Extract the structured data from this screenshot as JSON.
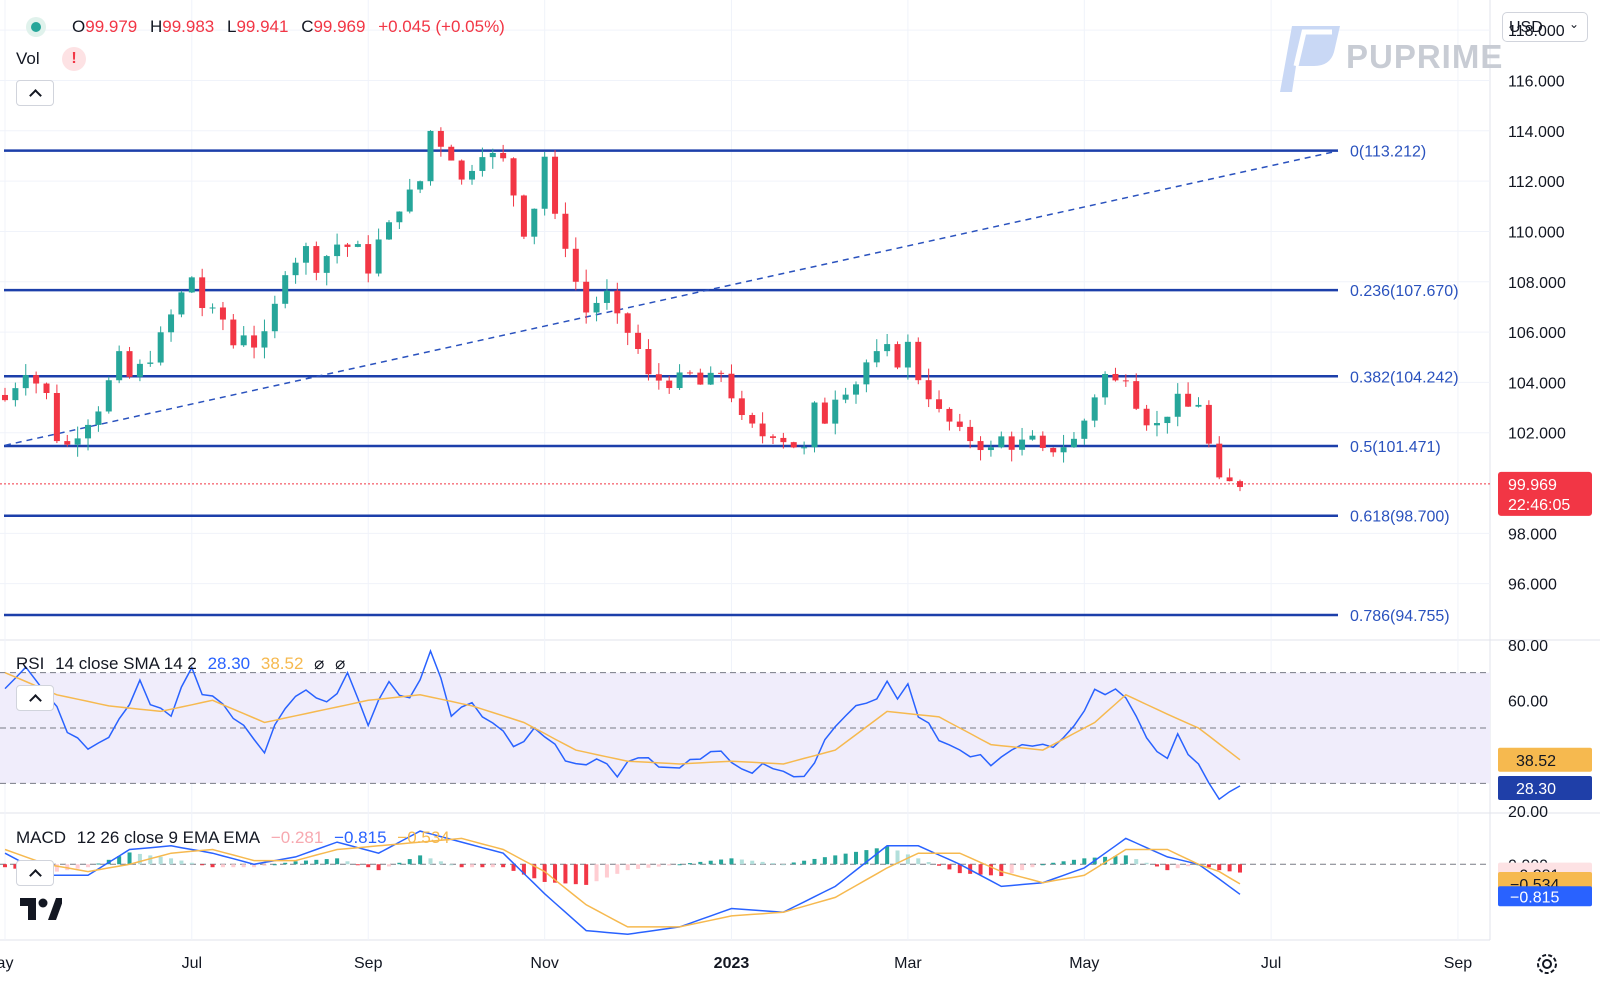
{
  "header": {
    "o_label": "O",
    "o_value": "99.979",
    "h_label": "H",
    "h_value": "99.983",
    "l_label": "L",
    "l_value": "99.941",
    "c_label": "C",
    "c_value": "99.969",
    "change": "+0.045 (+0.05%)",
    "vol_label": "Vol",
    "warning_icon": "!"
  },
  "currency": {
    "label": "USD",
    "chevron": "⌄"
  },
  "brand": {
    "name": "PUPRIME"
  },
  "chart_data": [
    {
      "type": "candlestick",
      "title": "",
      "x_ticks": [
        "ay",
        "Jul",
        "Sep",
        "Nov",
        "2023",
        "Mar",
        "May",
        "Jul",
        "Sep"
      ],
      "y_ticks": [
        "118.000",
        "116.000",
        "114.000",
        "112.000",
        "110.000",
        "108.000",
        "106.000",
        "104.000",
        "102.000",
        "98.000",
        "96.000"
      ],
      "ylim": [
        94.0,
        119.0
      ],
      "last_price": "99.969",
      "countdown": "22:46:05",
      "fib_levels": [
        {
          "label": "0(113.212)",
          "value": 113.212
        },
        {
          "label": "0.236(107.670)",
          "value": 107.67
        },
        {
          "label": "0.382(104.242)",
          "value": 104.242
        },
        {
          "label": "0.5(101.471)",
          "value": 101.471
        },
        {
          "label": "0.618(98.700)",
          "value": 98.7
        },
        {
          "label": "0.786(94.755)",
          "value": 94.755
        }
      ],
      "trendline": {
        "from": [
          0,
          101.5
        ],
        "to": [
          79,
          113.2
        ]
      },
      "anchors": [
        [
          0,
          103.3
        ],
        [
          2,
          104.5
        ],
        [
          4,
          103.5
        ],
        [
          5,
          101.8
        ],
        [
          6,
          101.5
        ],
        [
          8,
          102.5
        ],
        [
          9,
          103.0
        ],
        [
          11,
          105.0
        ],
        [
          12,
          104.2
        ],
        [
          14,
          105.0
        ],
        [
          15,
          105.8
        ],
        [
          17,
          107.5
        ],
        [
          18,
          108.2
        ],
        [
          19,
          107.0
        ],
        [
          21,
          106.5
        ],
        [
          22,
          105.5
        ],
        [
          23,
          106.0
        ],
        [
          24,
          105.5
        ],
        [
          25,
          105.8
        ],
        [
          26,
          107.0
        ],
        [
          27,
          108.5
        ],
        [
          29,
          109.3
        ],
        [
          30,
          108.6
        ],
        [
          32,
          109.5
        ],
        [
          34,
          109.3
        ],
        [
          35,
          108.5
        ],
        [
          36,
          109.6
        ],
        [
          37,
          110.2
        ],
        [
          38,
          111.0
        ],
        [
          39,
          111.5
        ],
        [
          40,
          112.0
        ],
        [
          41,
          114.0
        ],
        [
          43,
          113.0
        ],
        [
          44,
          112.0
        ],
        [
          46,
          113.2
        ],
        [
          48,
          112.8
        ],
        [
          49,
          111.5
        ],
        [
          50,
          110.0
        ],
        [
          51,
          111.0
        ],
        [
          52,
          113.0
        ],
        [
          53,
          110.5
        ],
        [
          54,
          109.5
        ],
        [
          55,
          108.0
        ],
        [
          56,
          106.8
        ],
        [
          57,
          107.2
        ],
        [
          58,
          107.5
        ],
        [
          59,
          106.5
        ],
        [
          60,
          106.0
        ],
        [
          61,
          105.3
        ],
        [
          62,
          104.2
        ],
        [
          64,
          104.0
        ],
        [
          66,
          104.3
        ],
        [
          67,
          103.9
        ],
        [
          69,
          104.4
        ],
        [
          70,
          103.5
        ],
        [
          71,
          102.5
        ],
        [
          73,
          101.9
        ],
        [
          74,
          102.0
        ],
        [
          76,
          101.5
        ],
        [
          77,
          101.3
        ],
        [
          78,
          103.0
        ],
        [
          79,
          102.5
        ],
        [
          80,
          103.5
        ],
        [
          82,
          104.0
        ],
        [
          83,
          104.8
        ],
        [
          85,
          105.3
        ],
        [
          86,
          104.8
        ],
        [
          87,
          105.5
        ],
        [
          88,
          104.2
        ],
        [
          89,
          103.5
        ],
        [
          90,
          102.8
        ],
        [
          92,
          102.0
        ],
        [
          94,
          101.5
        ],
        [
          95,
          101.3
        ],
        [
          96,
          101.8
        ],
        [
          97,
          101.5
        ],
        [
          99,
          101.7
        ],
        [
          100,
          101.2
        ],
        [
          102,
          101.5
        ],
        [
          103,
          101.7
        ],
        [
          104,
          102.5
        ],
        [
          105,
          103.5
        ],
        [
          106,
          104.3
        ],
        [
          107,
          104.0
        ],
        [
          108,
          104.3
        ],
        [
          109,
          103.2
        ],
        [
          110,
          102.5
        ],
        [
          111,
          102.3
        ],
        [
          112,
          102.8
        ],
        [
          113,
          103.3
        ],
        [
          114,
          103.0
        ],
        [
          115,
          103.2
        ],
        [
          116,
          101.5
        ],
        [
          117,
          100.0
        ],
        [
          119,
          99.969
        ]
      ],
      "current_index": 119
    },
    {
      "type": "line",
      "title": "",
      "indicator": {
        "name": "RSI",
        "params": "14 close SMA 14 2",
        "rsi_value": "28.30",
        "sma_value": "38.52",
        "extra1": "⌀",
        "extra2": "⌀"
      },
      "y_ticks": [
        "80.00",
        "60.00",
        "20.00"
      ],
      "ylim": [
        20,
        80
      ],
      "band": [
        30,
        70
      ],
      "midline": 50,
      "series": [
        {
          "name": "",
          "color": "#2962ff",
          "anchors": [
            [
              0,
              66
            ],
            [
              2,
              72
            ],
            [
              4,
              62
            ],
            [
              6,
              50
            ],
            [
              8,
              44
            ],
            [
              10,
              48
            ],
            [
              12,
              60
            ],
            [
              13,
              68
            ],
            [
              14,
              60
            ],
            [
              16,
              55
            ],
            [
              18,
              72
            ],
            [
              19,
              62
            ],
            [
              21,
              58
            ],
            [
              23,
              50
            ],
            [
              25,
              42
            ],
            [
              27,
              58
            ],
            [
              29,
              64
            ],
            [
              31,
              58
            ],
            [
              33,
              70
            ],
            [
              35,
              52
            ],
            [
              37,
              66
            ],
            [
              39,
              60
            ],
            [
              41,
              78
            ],
            [
              43,
              56
            ],
            [
              45,
              60
            ],
            [
              47,
              52
            ],
            [
              49,
              44
            ],
            [
              51,
              50
            ],
            [
              53,
              44
            ],
            [
              55,
              36
            ],
            [
              57,
              38
            ],
            [
              59,
              34
            ],
            [
              61,
              38
            ],
            [
              63,
              37
            ],
            [
              65,
              36
            ],
            [
              67,
              38
            ],
            [
              69,
              42
            ],
            [
              71,
              34
            ],
            [
              73,
              36
            ],
            [
              75,
              34
            ],
            [
              77,
              32
            ],
            [
              79,
              46
            ],
            [
              81,
              56
            ],
            [
              83,
              60
            ],
            [
              85,
              65
            ],
            [
              86,
              60
            ],
            [
              87,
              67
            ],
            [
              88,
              55
            ],
            [
              89,
              50
            ],
            [
              91,
              43
            ],
            [
              93,
              40
            ],
            [
              95,
              38
            ],
            [
              97,
              44
            ],
            [
              99,
              42
            ],
            [
              101,
              45
            ],
            [
              103,
              52
            ],
            [
              105,
              62
            ],
            [
              107,
              66
            ],
            [
              108,
              62
            ],
            [
              109,
              54
            ],
            [
              110,
              46
            ],
            [
              112,
              40
            ],
            [
              113,
              48
            ],
            [
              114,
              42
            ],
            [
              116,
              32
            ],
            [
              117,
              24
            ],
            [
              119,
              28.3
            ]
          ]
        },
        {
          "name": "",
          "color": "#f6b94f",
          "anchors": [
            [
              0,
              70
            ],
            [
              5,
              62
            ],
            [
              10,
              58
            ],
            [
              15,
              56
            ],
            [
              20,
              60
            ],
            [
              25,
              52
            ],
            [
              30,
              56
            ],
            [
              35,
              60
            ],
            [
              40,
              62
            ],
            [
              45,
              58
            ],
            [
              50,
              52
            ],
            [
              55,
              42
            ],
            [
              60,
              38
            ],
            [
              65,
              37
            ],
            [
              70,
              38
            ],
            [
              75,
              37
            ],
            [
              80,
              42
            ],
            [
              85,
              56
            ],
            [
              90,
              54
            ],
            [
              95,
              44
            ],
            [
              100,
              42
            ],
            [
              105,
              52
            ],
            [
              108,
              62
            ],
            [
              112,
              55
            ],
            [
              115,
              50
            ],
            [
              119,
              38.52
            ]
          ]
        }
      ]
    },
    {
      "type": "line",
      "title": "",
      "indicator": {
        "name": "MACD",
        "params": "12 26 close 9 EMA EMA",
        "hist_value": "−0.281",
        "macd_value": "−0.815",
        "signal_value": "−0.534"
      },
      "y_ticks": [
        "0.000"
      ],
      "ylim": [
        -2.0,
        1.2
      ],
      "zero": 0,
      "series": [
        {
          "name": "",
          "color": "#2962ff",
          "anchors": [
            [
              0,
              0.3
            ],
            [
              4,
              -0.3
            ],
            [
              8,
              -0.3
            ],
            [
              12,
              0.4
            ],
            [
              16,
              0.5
            ],
            [
              20,
              0.3
            ],
            [
              24,
              0.0
            ],
            [
              28,
              0.2
            ],
            [
              32,
              0.6
            ],
            [
              36,
              0.3
            ],
            [
              40,
              0.9
            ],
            [
              44,
              0.6
            ],
            [
              48,
              0.3
            ],
            [
              52,
              -0.8
            ],
            [
              56,
              -1.8
            ],
            [
              60,
              -1.9
            ],
            [
              65,
              -1.7
            ],
            [
              70,
              -1.2
            ],
            [
              75,
              -1.3
            ],
            [
              80,
              -0.6
            ],
            [
              85,
              0.5
            ],
            [
              88,
              0.5
            ],
            [
              92,
              0.0
            ],
            [
              96,
              -0.6
            ],
            [
              100,
              -0.5
            ],
            [
              104,
              -0.1
            ],
            [
              108,
              0.7
            ],
            [
              112,
              0.2
            ],
            [
              115,
              0.0
            ],
            [
              117,
              -0.4
            ],
            [
              119,
              -0.815
            ]
          ]
        },
        {
          "name": "",
          "color": "#f6b94f",
          "anchors": [
            [
              0,
              0.4
            ],
            [
              4,
              0.0
            ],
            [
              8,
              -0.2
            ],
            [
              12,
              0.0
            ],
            [
              16,
              0.3
            ],
            [
              20,
              0.4
            ],
            [
              24,
              0.1
            ],
            [
              28,
              0.1
            ],
            [
              32,
              0.4
            ],
            [
              36,
              0.5
            ],
            [
              40,
              0.6
            ],
            [
              44,
              0.7
            ],
            [
              48,
              0.4
            ],
            [
              52,
              -0.2
            ],
            [
              56,
              -1.1
            ],
            [
              60,
              -1.7
            ],
            [
              65,
              -1.7
            ],
            [
              70,
              -1.4
            ],
            [
              75,
              -1.3
            ],
            [
              80,
              -0.9
            ],
            [
              85,
              -0.1
            ],
            [
              88,
              0.3
            ],
            [
              92,
              0.3
            ],
            [
              96,
              -0.2
            ],
            [
              100,
              -0.5
            ],
            [
              104,
              -0.3
            ],
            [
              108,
              0.4
            ],
            [
              112,
              0.4
            ],
            [
              115,
              0.0
            ],
            [
              117,
              -0.2
            ],
            [
              119,
              -0.534
            ]
          ]
        }
      ],
      "hist_label": "−0.281"
    }
  ]
}
